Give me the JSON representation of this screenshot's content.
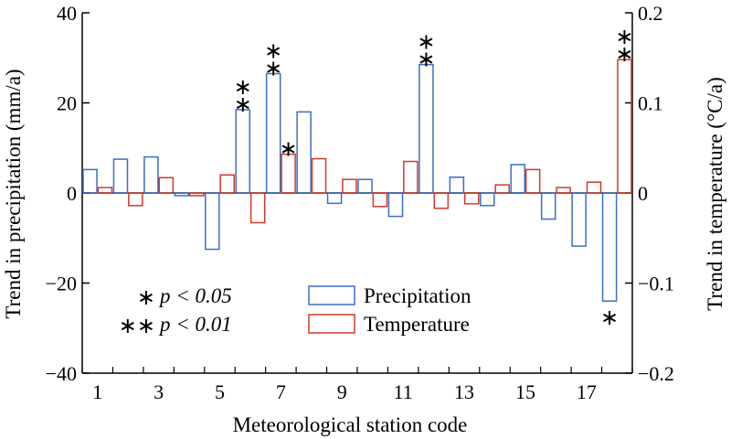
{
  "chart_data": {
    "type": "bar",
    "xlabel": "Meteorological station code",
    "ylabel_left": "Trend in precipitation (mm/a)",
    "ylabel_right": "Trend in temperature (°C/a)",
    "ylim_left": [
      -40,
      40
    ],
    "ylim_right": [
      -0.2,
      0.2
    ],
    "left_ticks": [
      "40",
      "20",
      "0",
      "−20",
      "−40"
    ],
    "right_ticks": [
      "0.2",
      "0.1",
      "0",
      "−0.1",
      "−0.2"
    ],
    "categories": [
      "1",
      "2",
      "3",
      "4",
      "5",
      "6",
      "7",
      "8",
      "9",
      "10",
      "11",
      "12",
      "13",
      "14",
      "15",
      "16",
      "17",
      "18"
    ],
    "x_tick_labels": [
      "1",
      "3",
      "5",
      "7",
      "9",
      "11",
      "13",
      "15",
      "17"
    ],
    "series": [
      {
        "name": "Precipitation",
        "color": "#3a6fc4",
        "axis": "left",
        "values": [
          5.2,
          7.5,
          8.0,
          -0.6,
          -12.5,
          18.5,
          26.5,
          18.0,
          -2.3,
          3.0,
          -5.2,
          28.5,
          3.5,
          -2.8,
          6.3,
          -5.8,
          -11.8,
          -24.0
        ],
        "marks": [
          "",
          "",
          "",
          "",
          "",
          "**",
          "**",
          "",
          "",
          "",
          "",
          "**",
          "",
          "",
          "",
          "",
          "",
          "*"
        ]
      },
      {
        "name": "Temperature",
        "color": "#d03a2a",
        "axis": "right",
        "values": [
          0.006,
          -0.014,
          0.017,
          -0.003,
          0.02,
          -0.033,
          0.043,
          0.038,
          0.015,
          -0.015,
          0.035,
          -0.017,
          -0.012,
          0.009,
          0.026,
          0.006,
          0.012,
          0.148
        ],
        "marks": [
          "",
          "",
          "",
          "",
          "",
          "",
          "*",
          "",
          "",
          "",
          "",
          "",
          "",
          "",
          "",
          "",
          "",
          "**"
        ]
      }
    ],
    "significance_notes": [
      {
        "stars": "∗",
        "text": "p < 0.05"
      },
      {
        "stars": "∗∗",
        "text": "p < 0.01"
      }
    ]
  }
}
